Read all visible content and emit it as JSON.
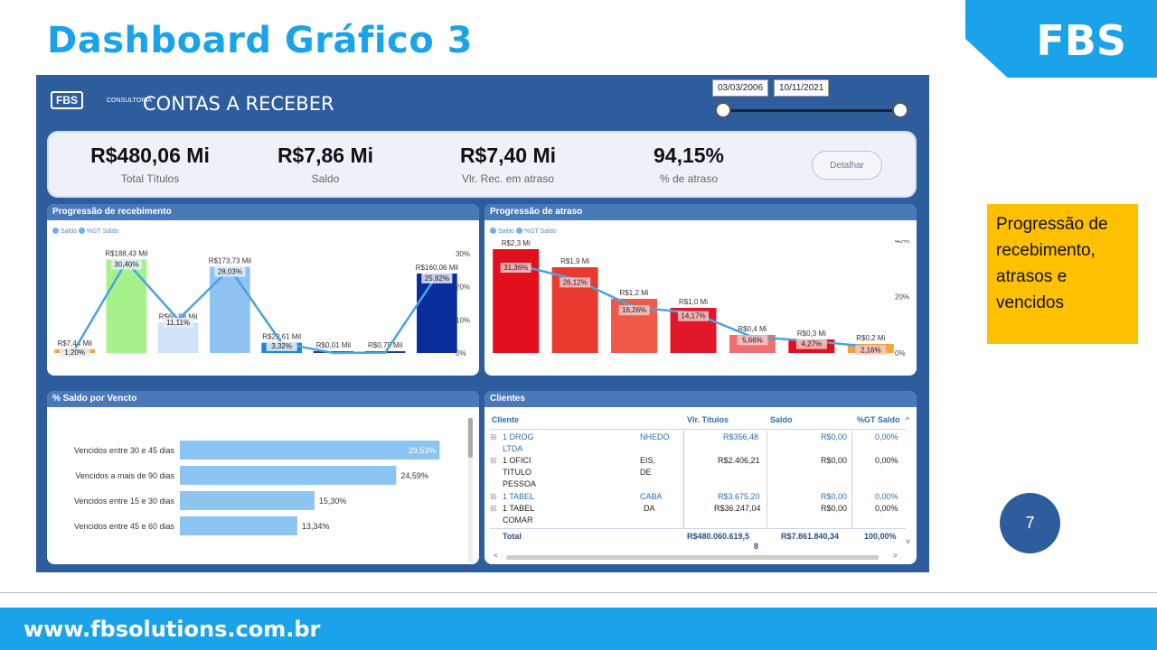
{
  "slide": {
    "title": "Dashboard Gráfico 3",
    "brand": "FBS",
    "side_note": "Progressão de recebimento, atrasos e vencidos",
    "page_number": "7",
    "footer_url": "www.fbsolutions.com.br"
  },
  "dashboard": {
    "logo": "FBS",
    "logo_sub": "CONSULTORIA",
    "title": "CONTAS A RECEBER",
    "date_start": "03/03/2006",
    "date_end": "10/11/2021",
    "kpis": [
      {
        "value": "R$480,06 Mi",
        "label": "Total Títulos"
      },
      {
        "value": "R$7,86 Mi",
        "label": "Saldo"
      },
      {
        "value": "R$7,40 Mi",
        "label": "Vlr. Rec. em atraso"
      },
      {
        "value": "94,15%",
        "label": "% de atraso"
      }
    ],
    "detail_button": "Detalhar"
  },
  "chart_data": [
    {
      "type": "bar",
      "title": "Progressão de recebimento",
      "legend": [
        "Saldo",
        "%GT Saldo"
      ],
      "values_label": [
        "R$7,44 Mil",
        "R$188,43 Mil",
        "R$60,88 Mil",
        "R$173,73 Mil",
        "R$20,61 Mil",
        "R$0,01 Mil",
        "R$0,75 Mil",
        "R$160,06 Mil"
      ],
      "values": [
        7.44,
        188.43,
        60.88,
        173.73,
        20.61,
        0.01,
        0.75,
        160.06
      ],
      "pct_labels": [
        "1,20%",
        "30,40%",
        "11,11%",
        "28,03%",
        "3,32%",
        "",
        "",
        "25,82%"
      ],
      "pct": [
        1.2,
        30.4,
        11.11,
        28.03,
        3.32,
        0.0,
        0.12,
        25.82
      ],
      "bar_colors": [
        "#f0a43a",
        "#a6f28a",
        "#cfe3f7",
        "#8fc4f2",
        "#1d84d8",
        "#1c3c8e",
        "#1c3c8e",
        "#0b2d9c"
      ],
      "y2_ticks": [
        "30%",
        "20%",
        "10%",
        "0%"
      ],
      "ylim": [
        0,
        200
      ]
    },
    {
      "type": "bar",
      "title": "Progressão de atraso",
      "legend": [
        "Saldo",
        "%GT Saldo"
      ],
      "values_label": [
        "R$2,3 Mi",
        "R$1,9 Mi",
        "R$1,2 Mi",
        "R$1,0 Mi",
        "R$0,4 Mi",
        "R$0,3 Mi",
        "R$0,2 Mi"
      ],
      "values": [
        2.3,
        1.9,
        1.2,
        1.0,
        0.4,
        0.3,
        0.2
      ],
      "pct_labels": [
        "31,36%",
        "26,12%",
        "16,26%",
        "14,17%",
        "5,66%",
        "4,27%",
        "2,16%"
      ],
      "pct": [
        31.36,
        26.12,
        16.26,
        14.17,
        5.66,
        4.27,
        2.16
      ],
      "bar_colors": [
        "#e0101e",
        "#e83a2e",
        "#ef5a48",
        "#e0182a",
        "#ef6f6f",
        "#e0101e",
        "#f0a43a"
      ],
      "y2_ticks": [
        "40%",
        "20%",
        "0%"
      ],
      "ylim": [
        0,
        2.5
      ]
    },
    {
      "type": "bar",
      "title": "% Saldo por Vencto",
      "categories": [
        "Vencidos entre 30 e 45 dias",
        "Vencidos a mais de 90 dias",
        "Vencidos entre 15 e 30 dias",
        "Vencidos entre 45 e 60 dias"
      ],
      "values": [
        29.53,
        24.59,
        15.3,
        13.34
      ],
      "value_labels": [
        "29,53%",
        "24,59%",
        "15,30%",
        "13,34%"
      ],
      "xlim": [
        0,
        30
      ]
    }
  ],
  "clients": {
    "title": "Clientes",
    "columns": [
      "Cliente",
      "Vlr. Títulos",
      "Saldo",
      "%GT Saldo"
    ],
    "rows": [
      {
        "name": "1 DROG",
        "name2": "LTDA",
        "frag": "NHEDO",
        "vlr": "R$356,48",
        "saldo": "R$0,00",
        "pct": "0,00%"
      },
      {
        "name": "1 OFICI",
        "name2": "TITULO",
        "name3": "PESSOA",
        "frag": "EIS,",
        "frag2": "DE",
        "vlr": "R$2.406,21",
        "saldo": "R$0,00",
        "pct": "0,00%"
      },
      {
        "name": "1 TABEL",
        "frag": "CABA",
        "vlr": "R$3.675,20",
        "saldo": "R$0,00",
        "pct": "0,00%"
      },
      {
        "name": "1 TABEL",
        "name2": "COMAR",
        "frag": "DA",
        "vlr": "R$36.247,04",
        "saldo": "R$0,00",
        "pct": "0,00%"
      }
    ],
    "total": {
      "label": "Total",
      "vlr": "R$480.060.619,5",
      "vlr2": "8",
      "saldo": "R$7.861.840,34",
      "pct": "100,00%"
    }
  }
}
